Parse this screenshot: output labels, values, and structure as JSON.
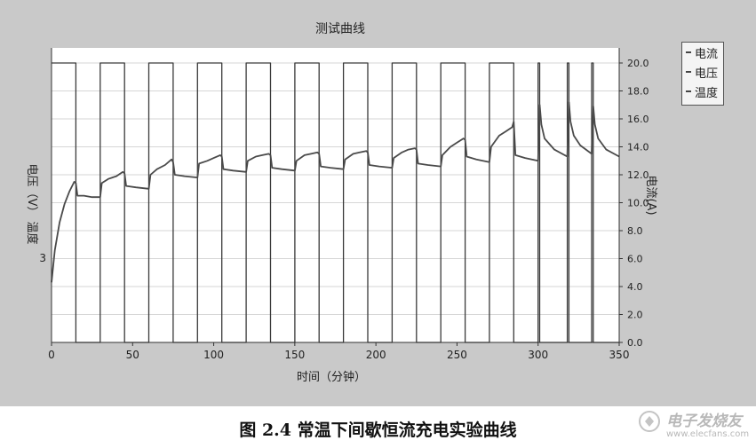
{
  "chart_data": {
    "type": "line",
    "title": "测试曲线",
    "xlabel": "时间（分钟）",
    "ylabel_left": "电压（V） 温度",
    "ylabel_right": "电流(A)",
    "xlim": [
      0,
      350
    ],
    "ylim_right": [
      0,
      20
    ],
    "x_ticks": [
      "0",
      "50",
      "100",
      "150",
      "200",
      "250",
      "300",
      "350"
    ],
    "right_ticks": [
      "0.0",
      "2.0",
      "4.0",
      "6.0",
      "8.0",
      "10.0",
      "12.0",
      "14.0",
      "16.0",
      "18.0",
      "20.0"
    ],
    "left_tick_label": "3",
    "legend": [
      "电流",
      "电压",
      "温度"
    ],
    "legend_position": "top-right",
    "series": [
      {
        "name": "电流",
        "x": [
          0,
          15,
          15,
          30,
          30,
          45,
          45,
          60,
          60,
          75,
          75,
          90,
          90,
          105,
          105,
          120,
          120,
          135,
          135,
          150,
          150,
          165,
          165,
          180,
          180,
          195,
          195,
          210,
          210,
          225,
          225,
          240,
          240,
          255,
          255,
          270,
          270,
          285,
          285,
          300,
          300,
          301,
          301,
          318,
          318,
          319,
          319,
          333,
          333,
          334,
          334,
          350
        ],
        "values": [
          20,
          20,
          0,
          0,
          20,
          20,
          0,
          0,
          20,
          20,
          0,
          0,
          20,
          20,
          0,
          0,
          20,
          20,
          0,
          0,
          20,
          20,
          0,
          0,
          20,
          20,
          0,
          0,
          20,
          20,
          0,
          0,
          20,
          20,
          0,
          0,
          20,
          20,
          0,
          0,
          20,
          20,
          0,
          0,
          20,
          20,
          0,
          0,
          20,
          20,
          0,
          0
        ]
      },
      {
        "name": "电压",
        "x": [
          0,
          2,
          5,
          8,
          11,
          14,
          15,
          16,
          20,
          25,
          30,
          31,
          35,
          40,
          44,
          45,
          46,
          52,
          60,
          61,
          65,
          70,
          74,
          75,
          76,
          82,
          90,
          91,
          96,
          100,
          104,
          105,
          106,
          112,
          120,
          121,
          126,
          130,
          134,
          135,
          136,
          142,
          150,
          151,
          156,
          160,
          164,
          165,
          166,
          172,
          180,
          181,
          186,
          190,
          194,
          195,
          196,
          202,
          210,
          211,
          216,
          220,
          224,
          225,
          226,
          232,
          240,
          241,
          246,
          250,
          254,
          255,
          256,
          262,
          270,
          271,
          276,
          280,
          284,
          285,
          286,
          292,
          300,
          301,
          302,
          304,
          310,
          318,
          319,
          320,
          322,
          326,
          333,
          334,
          335,
          337,
          342,
          350
        ],
        "values": [
          4.3,
          6.6,
          8.6,
          9.9,
          10.8,
          11.5,
          11.4,
          10.5,
          10.5,
          10.4,
          10.4,
          11.4,
          11.7,
          11.9,
          12.2,
          12.1,
          11.2,
          11.1,
          11.0,
          12.0,
          12.4,
          12.7,
          13.1,
          12.9,
          12.0,
          11.9,
          11.8,
          12.8,
          13.0,
          13.2,
          13.4,
          13.3,
          12.4,
          12.3,
          12.2,
          13.0,
          13.3,
          13.4,
          13.5,
          13.4,
          12.5,
          12.4,
          12.3,
          13.0,
          13.4,
          13.5,
          13.6,
          13.5,
          12.6,
          12.5,
          12.4,
          13.1,
          13.5,
          13.6,
          13.7,
          13.6,
          12.7,
          12.6,
          12.5,
          13.2,
          13.6,
          13.8,
          13.9,
          13.8,
          12.8,
          12.7,
          12.6,
          13.4,
          14.0,
          14.3,
          14.6,
          14.5,
          13.3,
          13.1,
          12.9,
          14.0,
          14.8,
          15.1,
          15.4,
          15.8,
          13.4,
          13.2,
          13.0,
          17.0,
          15.6,
          14.6,
          13.8,
          13.3,
          17.2,
          15.8,
          14.8,
          14.1,
          13.5,
          16.9,
          15.6,
          14.6,
          13.8,
          13.3
        ]
      }
    ]
  },
  "legend_items": [
    "电流",
    "电压",
    "温度"
  ],
  "caption": "图 2.4  常温下间歇恒流充电实验曲线",
  "watermark": {
    "title": "电子发烧友",
    "url": "www.elecfans.com"
  }
}
